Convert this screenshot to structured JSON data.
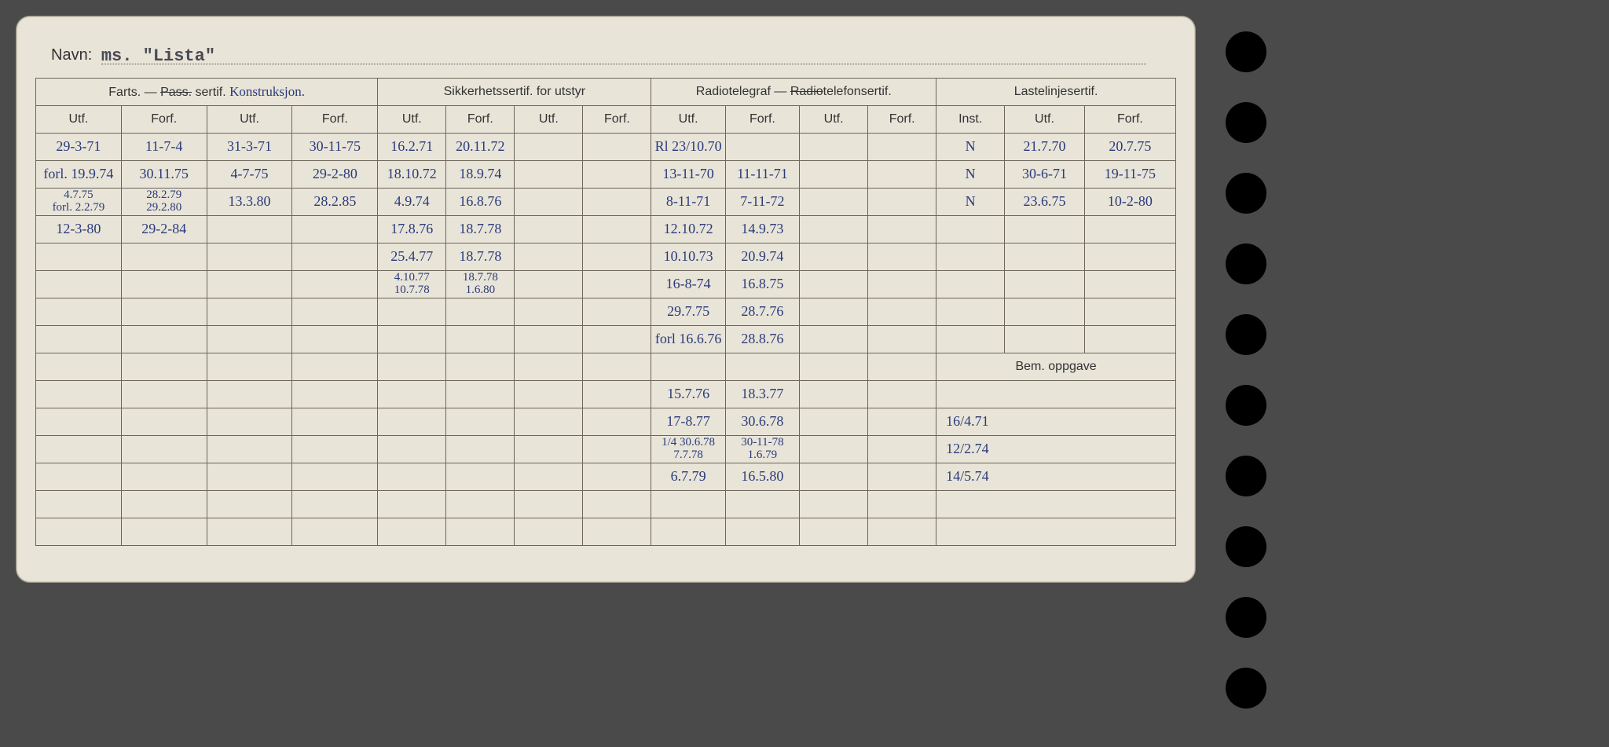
{
  "page_bg": "#4a4a4a",
  "card_bg": "#e8e4d8",
  "ink_color": "#2a3a7a",
  "rule_color": "#6b6658",
  "navn_label": "Navn:",
  "navn_value": "ms.  \"Lista\"",
  "groups": {
    "g1": {
      "title_left": "Farts.  —",
      "title_strike": "Pass.",
      "title_mid": "sertif.",
      "title_script": "Konstruksjon.",
      "cols": [
        "Utf.",
        "Forf.",
        "Utf.",
        "Forf."
      ]
    },
    "g2": {
      "title": "Sikkerhetssertif. for utstyr",
      "cols": [
        "Utf.",
        "Forf.",
        "Utf.",
        "Forf."
      ]
    },
    "g3": {
      "title_left": "Radiotelegraf  —",
      "title_strike": "Radio",
      "title_after": "telefonsertif.",
      "cols": [
        "Utf.",
        "Forf.",
        "Utf.",
        "Forf."
      ]
    },
    "g4": {
      "title": "Lastelinjesertif.",
      "cols": [
        "Inst.",
        "Utf.",
        "Forf."
      ]
    }
  },
  "bem_label": "Bem.  oppgave",
  "rows": [
    {
      "c": [
        "29-3-71",
        "11-7-4",
        "31-3-71",
        "30-11-75",
        "16.2.71",
        "20.11.72",
        "",
        "",
        "Rl 23/10.70",
        "",
        "",
        "",
        "N",
        "21.7.70",
        "20.7.75"
      ]
    },
    {
      "c": [
        "forl. 19.9.74",
        "30.11.75",
        "4-7-75",
        "29-2-80",
        "18.10.72",
        "18.9.74",
        "",
        "",
        "13-11-70",
        "11-11-71",
        "",
        "",
        "N",
        "30-6-71",
        "19-11-75"
      ]
    },
    {
      "c": [
        "4.7.75\nforl. 2.2.79",
        "28.2.79\n29.2.80",
        "13.3.80",
        "28.2.85",
        "4.9.74",
        "16.8.76",
        "",
        "",
        "8-11-71",
        "7-11-72",
        "",
        "",
        "N",
        "23.6.75",
        "10-2-80"
      ]
    },
    {
      "c": [
        "12-3-80",
        "29-2-84",
        "",
        "",
        "17.8.76",
        "18.7.78",
        "",
        "",
        "12.10.72",
        "14.9.73",
        "",
        "",
        "",
        "",
        ""
      ]
    },
    {
      "c": [
        "",
        "",
        "",
        "",
        "25.4.77",
        "18.7.78",
        "",
        "",
        "10.10.73",
        "20.9.74",
        "",
        "",
        "",
        "",
        ""
      ]
    },
    {
      "c": [
        "",
        "",
        "",
        "",
        "4.10.77\n10.7.78",
        "18.7.78\n1.6.80",
        "",
        "",
        "16-8-74",
        "16.8.75",
        "",
        "",
        "",
        "",
        ""
      ]
    },
    {
      "c": [
        "",
        "",
        "",
        "",
        "",
        "",
        "",
        "",
        "29.7.75",
        "28.7.76",
        "",
        "",
        "",
        "",
        ""
      ]
    },
    {
      "c": [
        "",
        "",
        "",
        "",
        "",
        "",
        "",
        "",
        "forl 16.6.76",
        "28.8.76",
        "",
        "",
        "",
        "",
        ""
      ]
    }
  ],
  "rows_lower": [
    {
      "c": [
        "",
        "",
        "",
        "",
        "",
        "",
        "",
        "",
        "15.7.76",
        "18.3.77",
        "",
        "",
        ""
      ],
      "bem": ""
    },
    {
      "c": [
        "",
        "",
        "",
        "",
        "",
        "",
        "",
        "",
        "17-8.77",
        "30.6.78",
        "",
        "",
        ""
      ],
      "bem": "16/4.71"
    },
    {
      "c": [
        "",
        "",
        "",
        "",
        "",
        "",
        "",
        "",
        "1/4 30.6.78\n7.7.78",
        "30-11-78\n1.6.79",
        "",
        "",
        ""
      ],
      "bem": "12/2.74"
    },
    {
      "c": [
        "",
        "",
        "",
        "",
        "",
        "",
        "",
        "",
        "6.7.79",
        "16.5.80",
        "",
        "",
        ""
      ],
      "bem": "14/5.74"
    },
    {
      "c": [
        "",
        "",
        "",
        "",
        "",
        "",
        "",
        "",
        "",
        "",
        "",
        "",
        ""
      ],
      "bem": ""
    },
    {
      "c": [
        "",
        "",
        "",
        "",
        "",
        "",
        "",
        "",
        "",
        "",
        "",
        "",
        ""
      ],
      "bem": ""
    }
  ],
  "col_widths_pct": [
    7.5,
    7.5,
    7.5,
    7.5,
    6,
    6,
    6,
    6,
    6.5,
    6.5,
    6,
    6,
    6,
    7,
    8
  ],
  "font": {
    "header_size": 17,
    "subheader_size": 16,
    "cell_size": 18
  }
}
